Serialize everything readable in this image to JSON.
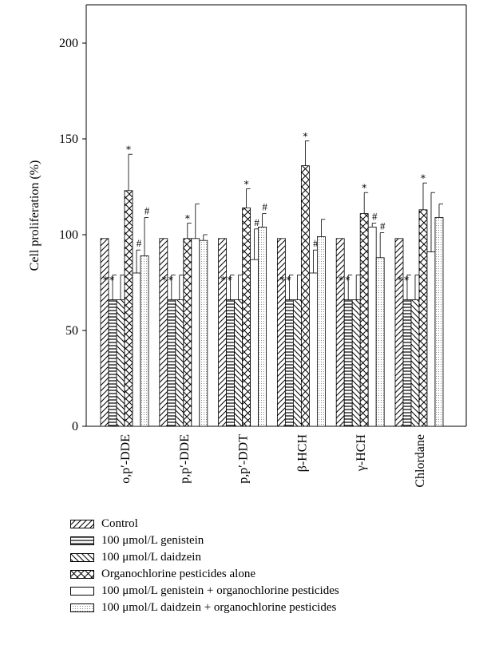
{
  "chart_data": {
    "type": "bar",
    "title": "",
    "xlabel": "",
    "ylabel": "Cell proliferation (%)",
    "ylim": [
      0,
      220
    ],
    "yticks": [
      0,
      50,
      100,
      150,
      200
    ],
    "grid": false,
    "legend_position": "bottom",
    "categories": [
      "o,p′-DDE",
      "p,p′-DDE",
      "p,p′-DDT",
      "β-HCH",
      "γ-HCH",
      "Chlordane"
    ],
    "series": [
      {
        "name": "Control",
        "pattern": "diag-forward",
        "values": [
          98,
          98,
          98,
          98,
          98,
          98
        ],
        "errors": [
          0,
          0,
          0,
          0,
          0,
          0
        ],
        "annotations": [
          "",
          "",
          "",
          "",
          "",
          ""
        ]
      },
      {
        "name": "100 μmol/L genistein",
        "pattern": "horizontal",
        "values": [
          66,
          66,
          66,
          66,
          66,
          66
        ],
        "errors": [
          13,
          13,
          13,
          13,
          13,
          13
        ],
        "annotations": [
          "∗∗",
          "∗∗",
          "∗∗",
          "∗∗",
          "∗∗",
          "∗∗"
        ]
      },
      {
        "name": "100 μmol/L daidzein",
        "pattern": "diag-back",
        "values": [
          66,
          66,
          66,
          66,
          66,
          66
        ],
        "errors": [
          13,
          13,
          13,
          13,
          13,
          13
        ],
        "annotations": [
          "",
          "",
          "",
          "",
          "",
          ""
        ]
      },
      {
        "name": "Organochlorine pesticides alone",
        "pattern": "cross",
        "values": [
          123,
          98,
          114,
          136,
          111,
          113
        ],
        "errors": [
          19,
          8,
          10,
          13,
          11,
          14
        ],
        "annotations": [
          "∗",
          "∗",
          "∗",
          "∗",
          "∗",
          "∗"
        ]
      },
      {
        "name": "100 μmol/L genistein + organochlorine pesticides",
        "pattern": "blank",
        "values": [
          80,
          98,
          87,
          80,
          104,
          91
        ],
        "errors": [
          12,
          18,
          16,
          12,
          2,
          31
        ],
        "annotations": [
          "#",
          "",
          "#",
          "#",
          "#",
          ""
        ]
      },
      {
        "name": "100 μmol/L daidzein + organochlorine pesticides",
        "pattern": "fine-dots",
        "values": [
          89,
          97,
          104,
          99,
          88,
          109
        ],
        "errors": [
          20,
          3,
          7,
          9,
          13,
          7
        ],
        "annotations": [
          "#",
          "",
          "#",
          "",
          "#",
          ""
        ]
      }
    ]
  }
}
